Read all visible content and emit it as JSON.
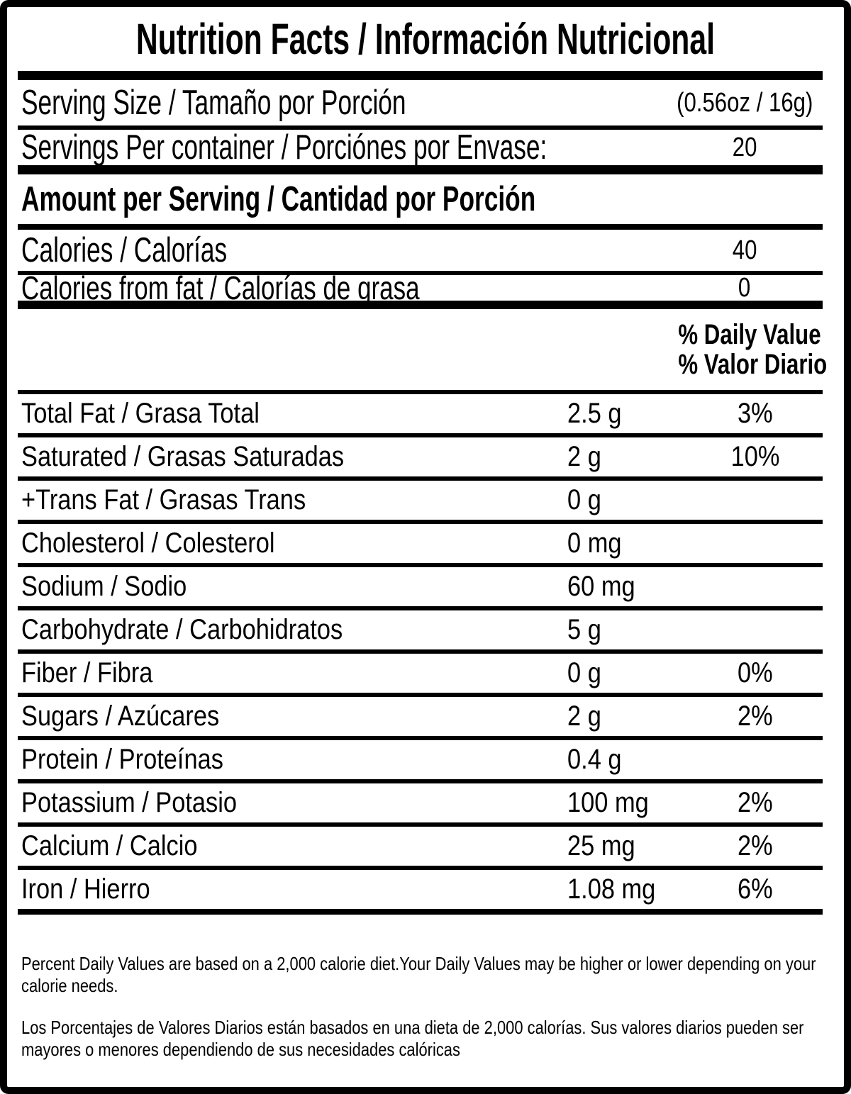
{
  "label": {
    "title": "Nutrition Facts / Información Nutricional",
    "serving": {
      "size_label": "Serving Size / Tamaño por Porción",
      "size_value": "(0.56oz / 16g)",
      "per_container_label": "Servings Per container / Porciónes por Envase:",
      "per_container_value": "20"
    },
    "amount_header": "Amount per Serving / Cantidad por Porción",
    "calories": {
      "label": "Calories / Calorías",
      "value": "40"
    },
    "calories_from_fat": {
      "label": "Calories from fat / Calorías de grasa",
      "value": "0"
    },
    "daily_value_header": {
      "line1": "% Daily Value",
      "line2": "% Valor Diario"
    },
    "nutrients": [
      {
        "label": "Total Fat / Grasa Total",
        "amount": "2.5 g",
        "percent": "3%"
      },
      {
        "label": "Saturated / Grasas Saturadas",
        "amount": "2 g",
        "percent": "10%"
      },
      {
        "label": "+Trans Fat / Grasas Trans",
        "amount": "0 g",
        "percent": ""
      },
      {
        "label": "Cholesterol / Colesterol",
        "amount": "0 mg",
        "percent": ""
      },
      {
        "label": "Sodium / Sodio",
        "amount": "60 mg",
        "percent": ""
      },
      {
        "label": "Carbohydrate / Carbohidratos",
        "amount": "5 g",
        "percent": ""
      },
      {
        "label": "Fiber / Fibra",
        "amount": "0 g",
        "percent": "0%"
      },
      {
        "label": "Sugars / Azúcares",
        "amount": "2 g",
        "percent": "2%"
      },
      {
        "label": "Protein / Proteínas",
        "amount": "0.4 g",
        "percent": ""
      },
      {
        "label": "Potassium / Potasio",
        "amount": "100 mg",
        "percent": "2%"
      },
      {
        "label": "Calcium / Calcio",
        "amount": "25 mg",
        "percent": "2%"
      },
      {
        "label": "Iron / Hierro",
        "amount": "1.08 mg",
        "percent": "6%"
      }
    ],
    "footnotes": {
      "english": "Percent Daily Values are based on a 2,000 calorie diet.Your Daily Values may be higher or lower depending on your calorie needs.",
      "spanish": "Los Porcentajes de Valores Diarios están basados en una dieta de 2,000 calorías. Sus valores diarios pueden ser mayores o menores dependiendo de sus necesidades calóricas"
    },
    "colors": {
      "ink": "#000000",
      "paper": "#ffffff"
    }
  }
}
